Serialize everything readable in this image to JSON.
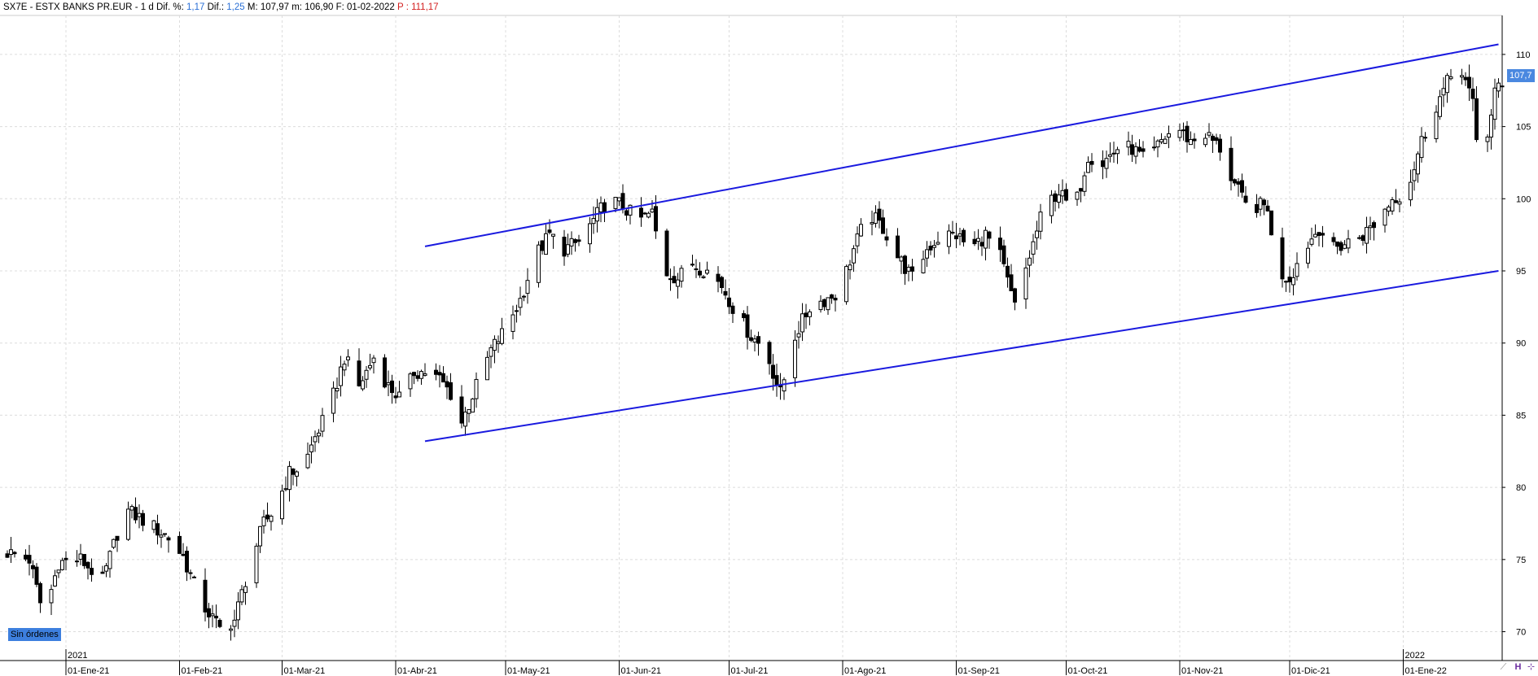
{
  "header": {
    "symbol": "SX7E - ESTX BANKS PR.EUR",
    "period": "1 d",
    "dif_pct_label": "Dif. %:",
    "dif_pct_value": "1,17",
    "dif_label": "Dif.:",
    "dif_value": "1,25",
    "max": "M: 107,97",
    "min": "m: 106,90",
    "date": "F: 01-02-2022",
    "p_label": "P :",
    "p_value": "111,17"
  },
  "orders_badge": "Sin órdenes",
  "price_flag": "107,7",
  "colors": {
    "channel": "#1a1adf",
    "up": "#ffffff",
    "down": "#000000",
    "flag": "#4a88e0",
    "badge": "#3d7fde"
  },
  "chart_data": {
    "type": "candlestick",
    "y_axis": {
      "ticks": [
        70,
        75,
        80,
        85,
        90,
        95,
        100,
        105,
        110
      ],
      "range": [
        68.0,
        112.7
      ],
      "side": "right"
    },
    "x_axis": {
      "month_labels": [
        "01-Ene-21",
        "01-Feb-21",
        "01-Mar-21",
        "01-Abr-21",
        "01-May-21",
        "01-Jun-21",
        "01-Jul-21",
        "01-Ago-21",
        "01-Sep-21",
        "01-Oct-21",
        "01-Nov-21",
        "01-Dic-21",
        "01-Ene-22"
      ],
      "month_days": [
        0,
        31,
        59,
        90,
        120,
        151,
        181,
        212,
        243,
        273,
        304,
        334,
        365
      ],
      "year_labels": [
        {
          "label": "2021",
          "day": 0
        },
        {
          "label": "2022",
          "day": 365
        }
      ],
      "day_range": [
        -18,
        392
      ]
    },
    "key_closes": [
      [
        -16,
        75.5
      ],
      [
        -10,
        75
      ],
      [
        -6,
        71
      ],
      [
        -2,
        74.8
      ],
      [
        4,
        75
      ],
      [
        10,
        73.5
      ],
      [
        16,
        78.5
      ],
      [
        22,
        77.6
      ],
      [
        28,
        76.5
      ],
      [
        32,
        75.2
      ],
      [
        37,
        72
      ],
      [
        42,
        70.2
      ],
      [
        46,
        70.8
      ],
      [
        50,
        74.5
      ],
      [
        54,
        77.5
      ],
      [
        57,
        78.5
      ],
      [
        61,
        81
      ],
      [
        65,
        81.5
      ],
      [
        68,
        83.5
      ],
      [
        72,
        85.5
      ],
      [
        76,
        89
      ],
      [
        80,
        87
      ],
      [
        84,
        89
      ],
      [
        88,
        87
      ],
      [
        92,
        86
      ],
      [
        95,
        88
      ],
      [
        98,
        88
      ],
      [
        102,
        87.5
      ],
      [
        105,
        86.5
      ],
      [
        108,
        84.5
      ],
      [
        112,
        87
      ],
      [
        116,
        89.5
      ],
      [
        120,
        91
      ],
      [
        124,
        93
      ],
      [
        128,
        96
      ],
      [
        132,
        97.5
      ],
      [
        136,
        96.5
      ],
      [
        140,
        97
      ],
      [
        144,
        98.5
      ],
      [
        148,
        100
      ],
      [
        152,
        99.5
      ],
      [
        156,
        98.5
      ],
      [
        160,
        99
      ],
      [
        163,
        95
      ],
      [
        167,
        94.5
      ],
      [
        171,
        95.5
      ],
      [
        175,
        95
      ],
      [
        179,
        94
      ],
      [
        183,
        92
      ],
      [
        187,
        90.5
      ],
      [
        191,
        89.5
      ],
      [
        195,
        86.5
      ],
      [
        199,
        90.5
      ],
      [
        203,
        92.5
      ],
      [
        207,
        93
      ],
      [
        211,
        93.5
      ],
      [
        215,
        96.5
      ],
      [
        219,
        99
      ],
      [
        223,
        98
      ],
      [
        227,
        96
      ],
      [
        231,
        94.5
      ],
      [
        235,
        96.5
      ],
      [
        239,
        97.5
      ],
      [
        243,
        97.5
      ],
      [
        247,
        96.5
      ],
      [
        251,
        97.5
      ],
      [
        255,
        96
      ],
      [
        259,
        92.5
      ],
      [
        263,
        96
      ],
      [
        267,
        99.5
      ],
      [
        271,
        100.5
      ],
      [
        275,
        99
      ],
      [
        279,
        103
      ],
      [
        283,
        102.5
      ],
      [
        287,
        103.5
      ],
      [
        291,
        103.5
      ],
      [
        295,
        102.5
      ],
      [
        299,
        104
      ],
      [
        303,
        105
      ],
      [
        307,
        104
      ],
      [
        311,
        104.5
      ],
      [
        315,
        103.5
      ],
      [
        318,
        101.5
      ],
      [
        322,
        99.5
      ],
      [
        328,
        99.5
      ],
      [
        330,
        95
      ],
      [
        334,
        94.5
      ],
      [
        338,
        96.5
      ],
      [
        342,
        98
      ],
      [
        346,
        96.5
      ],
      [
        350,
        97
      ],
      [
        354,
        97.5
      ],
      [
        358,
        98.5
      ],
      [
        362,
        100
      ],
      [
        366,
        100.5
      ],
      [
        370,
        104
      ],
      [
        374,
        106.5
      ],
      [
        378,
        108.5
      ],
      [
        381,
        109
      ],
      [
        384,
        106.5
      ],
      [
        386,
        101.5
      ],
      [
        388,
        104.5
      ],
      [
        390,
        107.5
      ],
      [
        392,
        107.7
      ]
    ],
    "channel_lines": [
      {
        "name": "upper",
        "points": [
          [
            98,
            96.7
          ],
          [
            391,
            110.7
          ]
        ]
      },
      {
        "name": "lower",
        "points": [
          [
            98,
            83.2
          ],
          [
            391,
            95.0
          ]
        ]
      }
    ]
  }
}
